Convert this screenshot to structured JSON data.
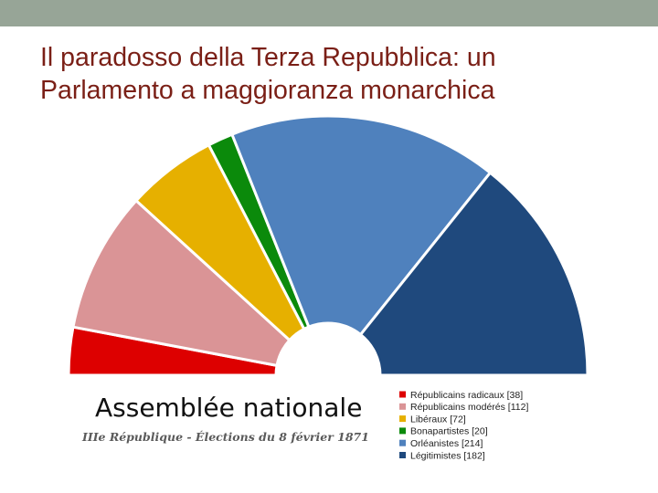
{
  "slide": {
    "title_line1": "Il paradosso della Terza Repubblica: un",
    "title_line2": "Parlamento a maggioranza monarchica",
    "accent_color": "#7a1f16",
    "top_bar_color": "#97a597"
  },
  "chart_data": {
    "type": "pie",
    "subtype": "parliament-semicircle",
    "title": "Assemblée nationale",
    "subtitle": "IIIe République - Élections du 8 février 1871",
    "legend_position": "bottom-right",
    "series": [
      {
        "label": "Républicains radicaux [38]",
        "value": 38,
        "color": "#dd0000"
      },
      {
        "label": "Républicains modérés [112]",
        "value": 112,
        "color": "#da9496"
      },
      {
        "label": "Libéraux [72]",
        "value": 72,
        "color": "#e6b000"
      },
      {
        "label": "Bonapartistes [20]",
        "value": 20,
        "color": "#0b8a0b"
      },
      {
        "label": "Orléanistes [214]",
        "value": 214,
        "color": "#4f81bd"
      },
      {
        "label": "Légitimistes [182]",
        "value": 182,
        "color": "#1f497d"
      }
    ]
  }
}
